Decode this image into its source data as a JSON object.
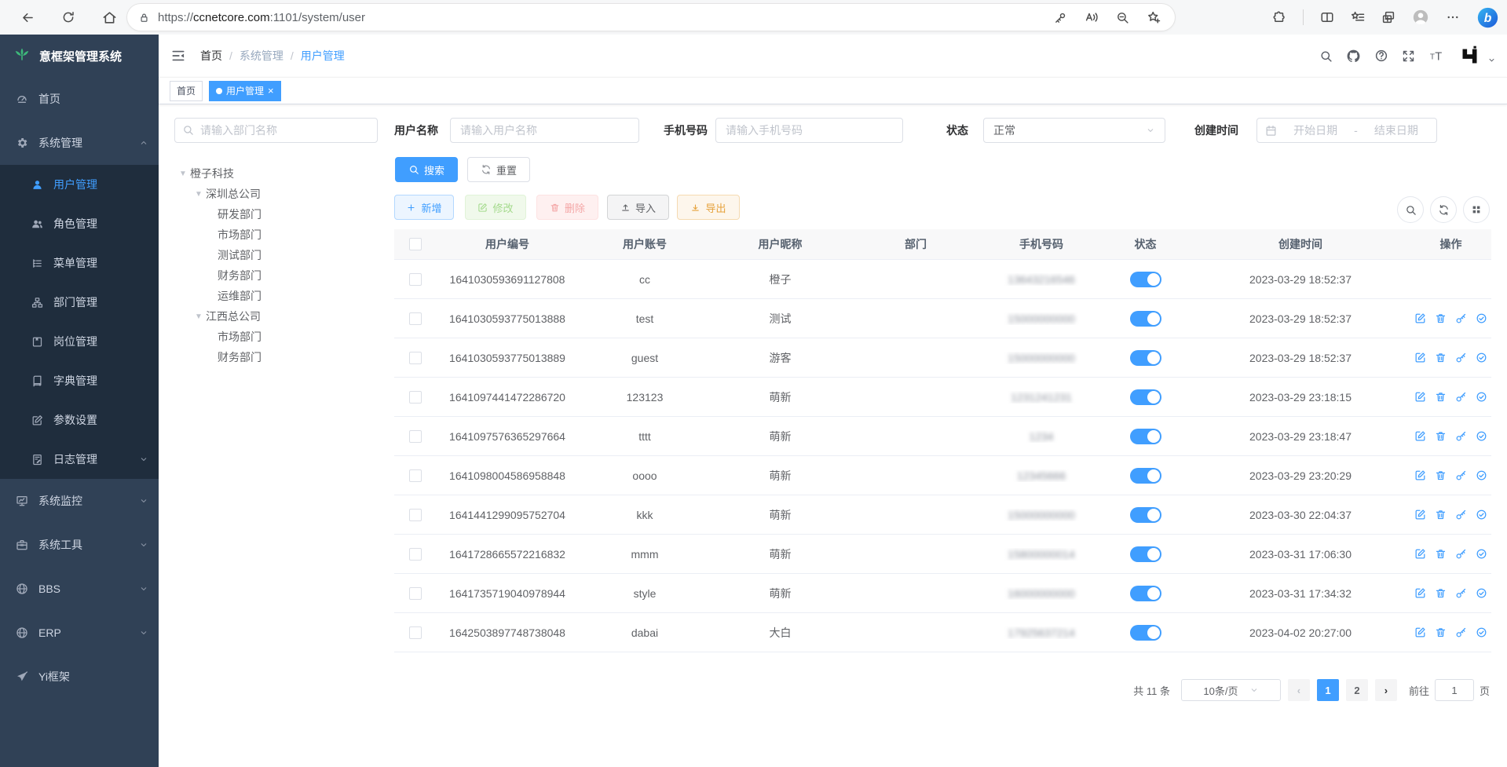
{
  "browser": {
    "url_scheme": "https://",
    "url_domain": "ccnetcore.com",
    "url_rest": ":1101/system/user"
  },
  "sidebar": {
    "logo_text": "意框架管理系统",
    "menu": [
      {
        "label": "首页",
        "icon": "dashboard"
      },
      {
        "label": "系统管理",
        "icon": "gear",
        "open": true,
        "children": [
          {
            "label": "用户管理",
            "icon": "user",
            "active": true
          },
          {
            "label": "角色管理",
            "icon": "users"
          },
          {
            "label": "菜单管理",
            "icon": "menutree"
          },
          {
            "label": "部门管理",
            "icon": "org"
          },
          {
            "label": "岗位管理",
            "icon": "badge"
          },
          {
            "label": "字典管理",
            "icon": "book"
          },
          {
            "label": "参数设置",
            "icon": "editpen"
          },
          {
            "label": "日志管理",
            "icon": "logpen",
            "caret": true
          }
        ]
      },
      {
        "label": "系统监控",
        "icon": "monitor",
        "caret": true
      },
      {
        "label": "系统工具",
        "icon": "toolbox",
        "caret": true
      },
      {
        "label": "BBS",
        "icon": "globe",
        "caret": true
      },
      {
        "label": "ERP",
        "icon": "globe",
        "caret": true
      },
      {
        "label": "Yi框架",
        "icon": "send"
      }
    ]
  },
  "header": {
    "breadcrumb": [
      {
        "label": "首页",
        "style": "dark"
      },
      {
        "label": "系统管理",
        "style": "muted"
      },
      {
        "label": "用户管理",
        "style": "link"
      }
    ]
  },
  "tabs": [
    {
      "label": "首页",
      "active": false
    },
    {
      "label": "用户管理",
      "active": true,
      "closable": true
    }
  ],
  "filters": {
    "dept_placeholder": "请输入部门名称",
    "username_label": "用户名称",
    "username_placeholder": "请输入用户名称",
    "phone_label": "手机号码",
    "phone_placeholder": "请输入手机号码",
    "status_label": "状态",
    "status_value": "正常",
    "created_label": "创建时间",
    "date_start": "开始日期",
    "date_separator": "-",
    "date_end": "结束日期",
    "search": "搜索",
    "reset": "重置"
  },
  "tree": [
    {
      "label": "橙子科技",
      "level": 0,
      "expandable": true
    },
    {
      "label": "深圳总公司",
      "level": 1,
      "expandable": true
    },
    {
      "label": "研发部门",
      "level": 2
    },
    {
      "label": "市场部门",
      "level": 2
    },
    {
      "label": "测试部门",
      "level": 2
    },
    {
      "label": "财务部门",
      "level": 2
    },
    {
      "label": "运维部门",
      "level": 2
    },
    {
      "label": "江西总公司",
      "level": 1,
      "expandable": true
    },
    {
      "label": "市场部门",
      "level": 2
    },
    {
      "label": "财务部门",
      "level": 2
    }
  ],
  "toolbar": [
    {
      "label": "新增",
      "kind": "add",
      "icon": "plus"
    },
    {
      "label": "修改",
      "kind": "edit",
      "icon": "editsq"
    },
    {
      "label": "删除",
      "kind": "delete",
      "icon": "trash"
    },
    {
      "label": "导入",
      "kind": "import",
      "icon": "upload"
    },
    {
      "label": "导出",
      "kind": "export",
      "icon": "download"
    }
  ],
  "table": {
    "columns": [
      "用户编号",
      "用户账号",
      "用户昵称",
      "部门",
      "手机号码",
      "状态",
      "创建时间",
      "操作"
    ],
    "action_icons": [
      {
        "name": "edit-icon",
        "icon": "editsq"
      },
      {
        "name": "delete-icon",
        "icon": "trash"
      },
      {
        "name": "reset-password-icon",
        "icon": "keyact"
      },
      {
        "name": "assign-role-icon",
        "icon": "checkcircle"
      }
    ],
    "rows": [
      {
        "id": "1641030593691127808",
        "account": "cc",
        "nickname": "橙子",
        "dept": "",
        "phone": "13643216546",
        "status": true,
        "created": "2023-03-29 18:52:37",
        "actions": false
      },
      {
        "id": "1641030593775013888",
        "account": "test",
        "nickname": "测试",
        "dept": "",
        "phone": "15000000000",
        "status": true,
        "created": "2023-03-29 18:52:37",
        "actions": true
      },
      {
        "id": "1641030593775013889",
        "account": "guest",
        "nickname": "游客",
        "dept": "",
        "phone": "15000000000",
        "status": true,
        "created": "2023-03-29 18:52:37",
        "actions": true
      },
      {
        "id": "1641097441472286720",
        "account": "123123",
        "nickname": "萌新",
        "dept": "",
        "phone": "1231241231",
        "status": true,
        "created": "2023-03-29 23:18:15",
        "actions": true
      },
      {
        "id": "1641097576365297664",
        "account": "tttt",
        "nickname": "萌新",
        "dept": "",
        "phone": "1234",
        "status": true,
        "created": "2023-03-29 23:18:47",
        "actions": true
      },
      {
        "id": "1641098004586958848",
        "account": "oooo",
        "nickname": "萌新",
        "dept": "",
        "phone": "12345666",
        "status": true,
        "created": "2023-03-29 23:20:29",
        "actions": true
      },
      {
        "id": "1641441299095752704",
        "account": "kkk",
        "nickname": "萌新",
        "dept": "",
        "phone": "15000000000",
        "status": true,
        "created": "2023-03-30 22:04:37",
        "actions": true
      },
      {
        "id": "1641728665572216832",
        "account": "mmm",
        "nickname": "萌新",
        "dept": "",
        "phone": "15800000014",
        "status": true,
        "created": "2023-03-31 17:06:30",
        "actions": true
      },
      {
        "id": "1641735719040978944",
        "account": "style",
        "nickname": "萌新",
        "dept": "",
        "phone": "16000000000",
        "status": true,
        "created": "2023-03-31 17:34:32",
        "actions": true
      },
      {
        "id": "1642503897748738048",
        "account": "dabai",
        "nickname": "大白",
        "dept": "",
        "phone": "17925637214",
        "status": true,
        "created": "2023-04-02 20:27:00",
        "actions": true
      }
    ]
  },
  "pagination": {
    "total": "共 11 条",
    "page_size": "10条/页",
    "pages": [
      "1",
      "2"
    ],
    "active": "1",
    "goto_label": "前往",
    "goto_value": "1",
    "goto_unit": "页"
  },
  "icons": {
    "browser": [
      "back-icon",
      "reload-icon",
      "home-icon",
      "lock-icon",
      "key-icon",
      "read-aloud-icon",
      "zoom-out-icon",
      "favorite-add-icon",
      "extensions-icon",
      "split-screen-icon",
      "favorites-icon",
      "collections-icon",
      "profile-avatar-icon",
      "more-icon",
      "copilot-icon"
    ],
    "navbar": [
      "fold-icon",
      "search-icon",
      "github-icon",
      "help-icon",
      "fullscreen-icon",
      "font-size-icon",
      "user-logo-icon",
      "chevron-down-icon"
    ],
    "panel": [
      "search-circle-icon",
      "refresh-circle-icon",
      "grid-circle-icon"
    ]
  },
  "colors": {
    "primary": "#409eff",
    "sidebar_bg": "#304156",
    "submenu_bg": "#1f2d3d",
    "success": "#67c23a",
    "danger": "#f56c6c",
    "warning": "#e6a23c"
  }
}
